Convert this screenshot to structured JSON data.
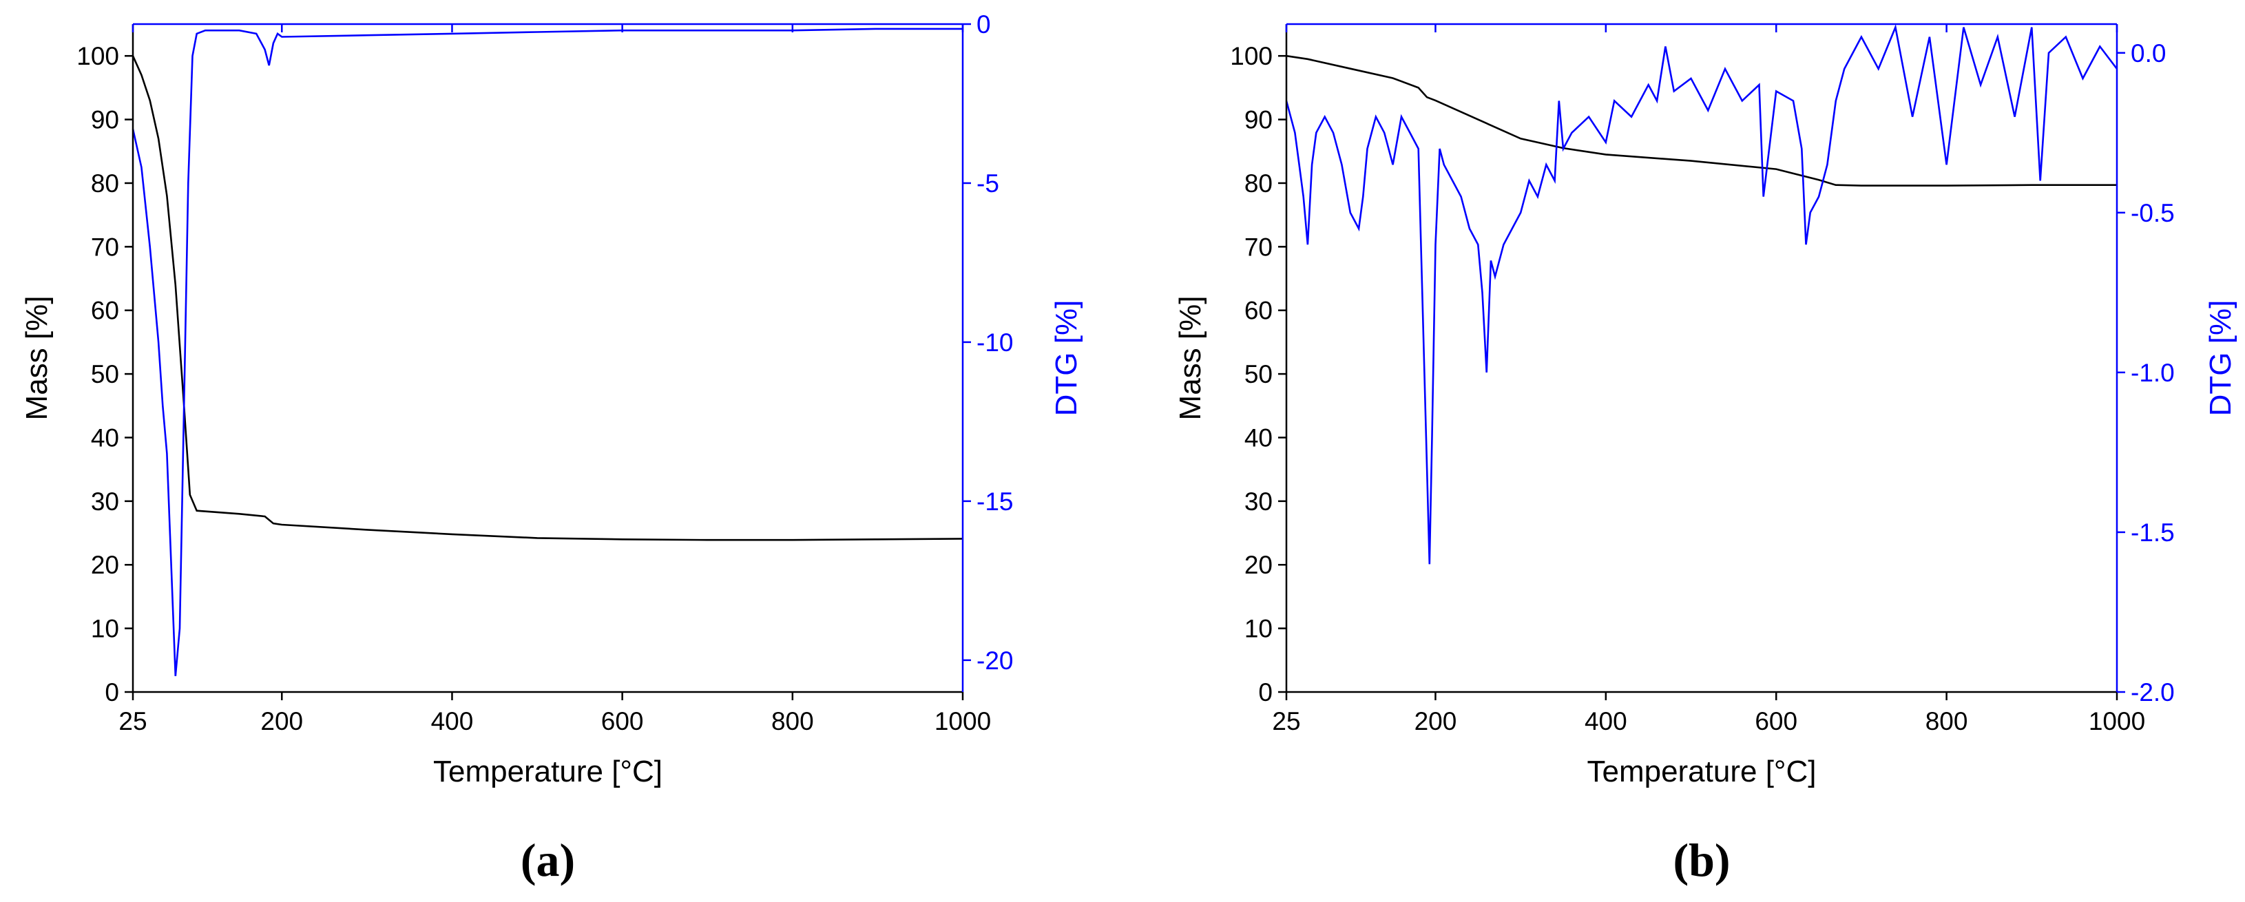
{
  "chart_data": [
    {
      "type": "line",
      "caption": "(a)",
      "x_label": "Temperature [°C]",
      "y_label": "Mass [%]",
      "y2_label": "DTG [%]",
      "xlim": [
        25,
        1000
      ],
      "xticks": [
        25,
        200,
        400,
        600,
        800,
        1000
      ],
      "ylim": [
        0,
        105
      ],
      "yticks": [
        0,
        10,
        20,
        30,
        40,
        50,
        60,
        70,
        80,
        90,
        100
      ],
      "y2lim": [
        -21,
        0
      ],
      "y2ticks": [
        -20,
        -15,
        -10,
        -5,
        0
      ],
      "series": [
        {
          "name": "Mass",
          "color": "#000000",
          "x": [
            25,
            35,
            45,
            55,
            65,
            75,
            85,
            92,
            100,
            150,
            180,
            190,
            200,
            300,
            400,
            500,
            600,
            700,
            800,
            900,
            1000
          ],
          "values": [
            100,
            97,
            93,
            87,
            78,
            64,
            45,
            31,
            28.5,
            28,
            27.6,
            26.5,
            26.3,
            25.5,
            24.8,
            24.2,
            24,
            23.9,
            23.9,
            24,
            24.1
          ]
        },
        {
          "name": "DTG",
          "color": "#0000ff",
          "axis": "y2",
          "x": [
            25,
            35,
            45,
            55,
            60,
            65,
            70,
            75,
            80,
            85,
            90,
            95,
            100,
            110,
            150,
            170,
            180,
            185,
            190,
            195,
            200,
            300,
            400,
            500,
            600,
            700,
            800,
            900,
            1000
          ],
          "values": [
            -3.3,
            -4.5,
            -7,
            -10,
            -12,
            -13.5,
            -17,
            -20.5,
            -19,
            -12,
            -5,
            -1,
            -0.3,
            -0.2,
            -0.2,
            -0.3,
            -0.8,
            -1.3,
            -0.6,
            -0.3,
            -0.4,
            -0.35,
            -0.3,
            -0.25,
            -0.2,
            -0.2,
            -0.2,
            -0.15,
            -0.15
          ]
        }
      ]
    },
    {
      "type": "line",
      "caption": "(b)",
      "x_label": "Temperature [°C]",
      "y_label": "Mass [%]",
      "y2_label": "DTG [%]",
      "xlim": [
        25,
        1000
      ],
      "xticks": [
        25,
        200,
        400,
        600,
        800,
        1000
      ],
      "ylim": [
        0,
        105
      ],
      "yticks": [
        0,
        10,
        20,
        30,
        40,
        50,
        60,
        70,
        80,
        90,
        100
      ],
      "y2lim": [
        -2.0,
        0.09
      ],
      "y2ticks": [
        {
          "value": -2,
          "label": "-2.0"
        },
        -1.5,
        {
          "value": -1,
          "label": "-1.0"
        },
        -0.5,
        {
          "value": 0,
          "label": "0.0"
        }
      ],
      "series": [
        {
          "name": "Mass",
          "color": "#000000",
          "x": [
            25,
            50,
            100,
            150,
            180,
            190,
            200,
            250,
            300,
            350,
            400,
            500,
            600,
            650,
            670,
            700,
            800,
            900,
            1000
          ],
          "values": [
            100,
            99.5,
            98,
            96.5,
            95,
            93.5,
            93,
            90,
            87,
            85.5,
            84.5,
            83.5,
            82.2,
            80.5,
            79.7,
            79.6,
            79.6,
            79.7,
            79.7
          ]
        },
        {
          "name": "DTG",
          "color": "#0000ff",
          "axis": "y2",
          "x": [
            25,
            30,
            35,
            40,
            45,
            50,
            55,
            60,
            70,
            80,
            90,
            100,
            110,
            115,
            120,
            130,
            140,
            150,
            160,
            170,
            180,
            185,
            190,
            193,
            196,
            200,
            205,
            210,
            220,
            230,
            240,
            250,
            255,
            260,
            265,
            270,
            280,
            290,
            300,
            310,
            320,
            330,
            340,
            345,
            350,
            360,
            380,
            400,
            410,
            430,
            450,
            460,
            470,
            480,
            500,
            520,
            540,
            560,
            580,
            585,
            600,
            620,
            630,
            635,
            640,
            650,
            660,
            670,
            680,
            700,
            720,
            740,
            760,
            780,
            800,
            820,
            840,
            860,
            880,
            900,
            910,
            920,
            940,
            960,
            980,
            1000
          ],
          "values": [
            -0.15,
            -0.2,
            -0.25,
            -0.35,
            -0.45,
            -0.6,
            -0.35,
            -0.25,
            -0.2,
            -0.25,
            -0.35,
            -0.5,
            -0.55,
            -0.45,
            -0.3,
            -0.2,
            -0.25,
            -0.35,
            -0.2,
            -0.25,
            -0.3,
            -0.8,
            -1.3,
            -1.6,
            -1.2,
            -0.6,
            -0.3,
            -0.35,
            -0.4,
            -0.45,
            -0.55,
            -0.6,
            -0.75,
            -1.0,
            -0.65,
            -0.7,
            -0.6,
            -0.55,
            -0.5,
            -0.4,
            -0.45,
            -0.35,
            -0.4,
            -0.15,
            -0.3,
            -0.25,
            -0.2,
            -0.28,
            -0.15,
            -0.2,
            -0.1,
            -0.15,
            0.02,
            -0.12,
            -0.08,
            -0.18,
            -0.05,
            -0.15,
            -0.1,
            -0.45,
            -0.12,
            -0.15,
            -0.3,
            -0.6,
            -0.5,
            -0.45,
            -0.35,
            -0.15,
            -0.05,
            0.05,
            -0.05,
            0.08,
            -0.2,
            0.05,
            -0.35,
            0.08,
            -0.1,
            0.05,
            -0.2,
            0.08,
            -0.4,
            0,
            0.05,
            -0.08,
            0.02,
            -0.05
          ]
        }
      ]
    }
  ]
}
